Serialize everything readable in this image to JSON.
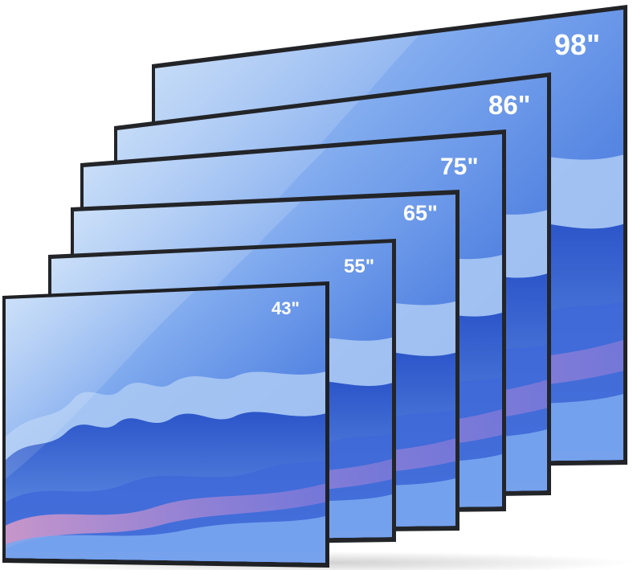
{
  "scene": {
    "description_free": true,
    "tv_sizes": [
      {
        "id": "tv-98",
        "label": "98\""
      },
      {
        "id": "tv-86",
        "label": "86\""
      },
      {
        "id": "tv-75",
        "label": "75\""
      },
      {
        "id": "tv-65",
        "label": "65\""
      },
      {
        "id": "tv-55",
        "label": "55\""
      },
      {
        "id": "tv-43",
        "label": "43\""
      }
    ],
    "colors": {
      "bezel": "#2a2c30",
      "sky_top": "#9cc4f0",
      "sky_mid": "#5f8fe0",
      "mountain_blue": "#3a67d6",
      "mountain_light": "#a9c9f2",
      "pink_haze": "#e58fb3",
      "label": "#ffffff"
    }
  }
}
